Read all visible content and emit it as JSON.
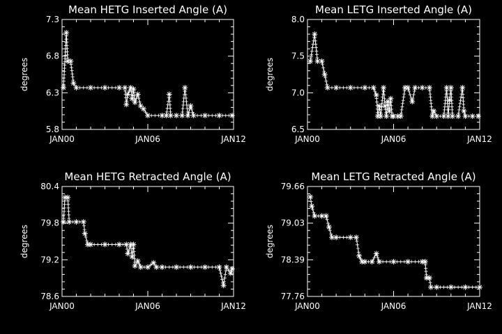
{
  "chart_data": [
    {
      "type": "scatter",
      "title": "Mean HETG Inserted Angle (A)",
      "ylabel": "degrees",
      "xlabel": "",
      "xticks": [
        "JAN00",
        "JAN06",
        "JAN12"
      ],
      "yticks": [
        "5.8",
        "6.3",
        "6.8",
        "7.3"
      ],
      "xlim": [
        2000,
        2012
      ],
      "ylim": [
        5.8,
        7.3
      ],
      "line_color": "#ffffff",
      "marker": "asterisk",
      "points": [
        [
          2000.1,
          6.37
        ],
        [
          2000.3,
          7.12
        ],
        [
          2000.4,
          6.73
        ],
        [
          2000.6,
          6.73
        ],
        [
          2000.8,
          6.43
        ],
        [
          2001.0,
          6.37
        ],
        [
          2002.0,
          6.37
        ],
        [
          2003.0,
          6.37
        ],
        [
          2004.0,
          6.37
        ],
        [
          2004.4,
          6.37
        ],
        [
          2004.5,
          6.14
        ],
        [
          2004.6,
          6.28
        ],
        [
          2004.8,
          6.37
        ],
        [
          2004.9,
          6.22
        ],
        [
          2005.0,
          6.35
        ],
        [
          2005.1,
          6.17
        ],
        [
          2005.3,
          6.28
        ],
        [
          2005.5,
          6.12
        ],
        [
          2005.7,
          6.08
        ],
        [
          2006.0,
          5.99
        ],
        [
          2007.0,
          5.99
        ],
        [
          2007.3,
          5.99
        ],
        [
          2007.5,
          6.28
        ],
        [
          2007.6,
          5.99
        ],
        [
          2008.0,
          5.99
        ],
        [
          2008.4,
          5.99
        ],
        [
          2008.6,
          6.37
        ],
        [
          2008.8,
          5.99
        ],
        [
          2009.0,
          6.12
        ],
        [
          2009.2,
          5.99
        ],
        [
          2010.0,
          5.99
        ],
        [
          2011.0,
          5.99
        ],
        [
          2011.9,
          5.99
        ]
      ]
    },
    {
      "type": "scatter",
      "title": "Mean LETG Inserted Angle (A)",
      "ylabel": "degrees",
      "xlabel": "",
      "xticks": [
        "JAN00",
        "JAN06",
        "JAN12"
      ],
      "yticks": [
        "6.5",
        "7.0",
        "7.5",
        "8.0"
      ],
      "xlim": [
        2000,
        2012
      ],
      "ylim": [
        6.5,
        8.0
      ],
      "line_color": "#ffffff",
      "marker": "asterisk",
      "points": [
        [
          2000.2,
          7.43
        ],
        [
          2000.5,
          7.8
        ],
        [
          2000.7,
          7.43
        ],
        [
          2001.0,
          7.43
        ],
        [
          2001.2,
          7.25
        ],
        [
          2001.4,
          7.07
        ],
        [
          2002.0,
          7.07
        ],
        [
          2003.0,
          7.07
        ],
        [
          2004.0,
          7.07
        ],
        [
          2004.6,
          7.07
        ],
        [
          2004.8,
          6.97
        ],
        [
          2004.9,
          6.68
        ],
        [
          2005.0,
          6.82
        ],
        [
          2005.1,
          6.68
        ],
        [
          2005.3,
          7.07
        ],
        [
          2005.4,
          6.82
        ],
        [
          2005.5,
          6.68
        ],
        [
          2005.6,
          6.88
        ],
        [
          2005.7,
          6.75
        ],
        [
          2005.8,
          6.92
        ],
        [
          2005.9,
          6.68
        ],
        [
          2006.0,
          6.68
        ],
        [
          2006.3,
          6.68
        ],
        [
          2006.5,
          6.68
        ],
        [
          2006.8,
          7.07
        ],
        [
          2007.0,
          7.07
        ],
        [
          2007.3,
          6.88
        ],
        [
          2007.5,
          7.07
        ],
        [
          2008.0,
          7.07
        ],
        [
          2008.5,
          7.07
        ],
        [
          2008.7,
          6.68
        ],
        [
          2008.8,
          6.75
        ],
        [
          2009.0,
          6.68
        ],
        [
          2009.5,
          6.68
        ],
        [
          2009.7,
          7.07
        ],
        [
          2009.8,
          6.68
        ],
        [
          2009.9,
          6.9
        ],
        [
          2010.0,
          7.07
        ],
        [
          2010.1,
          6.68
        ],
        [
          2010.5,
          6.68
        ],
        [
          2010.8,
          7.07
        ],
        [
          2010.9,
          6.75
        ],
        [
          2011.0,
          6.68
        ],
        [
          2011.5,
          6.68
        ],
        [
          2011.9,
          6.68
        ]
      ]
    },
    {
      "type": "scatter",
      "title": "Mean HETG Retracted Angle (A)",
      "ylabel": "degrees",
      "xlabel": "",
      "xticks": [
        "JAN00",
        "JAN06",
        "JAN12"
      ],
      "yticks": [
        "78.6",
        "79.2",
        "79.8",
        "80.4"
      ],
      "xlim": [
        2000,
        2012
      ],
      "ylim": [
        78.6,
        80.4
      ],
      "line_color": "#ffffff",
      "marker": "asterisk",
      "points": [
        [
          2000.1,
          79.82
        ],
        [
          2000.2,
          80.22
        ],
        [
          2000.4,
          80.22
        ],
        [
          2000.5,
          79.82
        ],
        [
          2001.0,
          79.82
        ],
        [
          2001.5,
          79.82
        ],
        [
          2001.6,
          79.63
        ],
        [
          2001.8,
          79.45
        ],
        [
          2002.0,
          79.45
        ],
        [
          2003.0,
          79.45
        ],
        [
          2004.0,
          79.45
        ],
        [
          2004.5,
          79.45
        ],
        [
          2004.6,
          79.3
        ],
        [
          2004.8,
          79.45
        ],
        [
          2004.9,
          79.25
        ],
        [
          2005.0,
          79.45
        ],
        [
          2005.1,
          79.1
        ],
        [
          2005.3,
          79.18
        ],
        [
          2005.5,
          79.08
        ],
        [
          2006.0,
          79.08
        ],
        [
          2006.4,
          79.15
        ],
        [
          2006.6,
          79.08
        ],
        [
          2007.0,
          79.08
        ],
        [
          2008.0,
          79.08
        ],
        [
          2009.0,
          79.08
        ],
        [
          2010.0,
          79.08
        ],
        [
          2011.0,
          79.08
        ],
        [
          2011.3,
          78.78
        ],
        [
          2011.5,
          79.08
        ],
        [
          2011.8,
          78.98
        ],
        [
          2011.9,
          79.05
        ]
      ]
    },
    {
      "type": "scatter",
      "title": "Mean LETG Retracted Angle (A)",
      "ylabel": "degrees",
      "xlabel": "",
      "xticks": [
        "JAN00",
        "JAN06",
        "JAN12"
      ],
      "yticks": [
        "77.76",
        "78.39",
        "79.03",
        "79.66"
      ],
      "xlim": [
        2000,
        2012
      ],
      "ylim": [
        77.76,
        79.66
      ],
      "line_color": "#ffffff",
      "marker": "asterisk",
      "points": [
        [
          2000.2,
          79.48
        ],
        [
          2000.3,
          79.32
        ],
        [
          2000.5,
          79.15
        ],
        [
          2001.0,
          79.15
        ],
        [
          2001.3,
          79.15
        ],
        [
          2001.5,
          78.96
        ],
        [
          2001.7,
          78.78
        ],
        [
          2002.0,
          78.78
        ],
        [
          2003.0,
          78.78
        ],
        [
          2003.4,
          78.78
        ],
        [
          2003.6,
          78.46
        ],
        [
          2003.8,
          78.36
        ],
        [
          2004.0,
          78.36
        ],
        [
          2004.5,
          78.36
        ],
        [
          2004.8,
          78.5
        ],
        [
          2005.0,
          78.36
        ],
        [
          2006.0,
          78.36
        ],
        [
          2007.0,
          78.36
        ],
        [
          2008.0,
          78.36
        ],
        [
          2008.2,
          78.36
        ],
        [
          2008.3,
          78.08
        ],
        [
          2008.5,
          78.08
        ],
        [
          2008.6,
          77.92
        ],
        [
          2009.0,
          77.92
        ],
        [
          2010.0,
          77.92
        ],
        [
          2011.0,
          77.92
        ],
        [
          2012.0,
          77.92
        ]
      ]
    }
  ]
}
